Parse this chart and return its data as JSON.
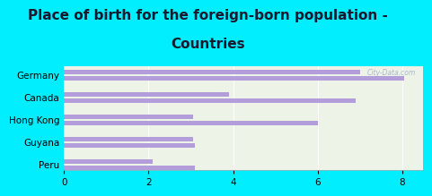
{
  "title_line1": "Place of birth for the foreign-born population -",
  "title_line2": "Countries",
  "categories": [
    "Germany",
    "Canada",
    "Hong Kong",
    "Guyana",
    "Peru"
  ],
  "values1": [
    8.05,
    6.9,
    6.0,
    3.1,
    3.1
  ],
  "values2": [
    7.0,
    3.9,
    3.05,
    3.05,
    2.1
  ],
  "bar_color": "#b39ddb",
  "bg_outer": "#00eeff",
  "bg_inner_tl": "#eef3e8",
  "bg_inner_br": "#d8ead0",
  "xlim": [
    0,
    8.5
  ],
  "xticks": [
    0,
    2,
    4,
    6,
    8
  ],
  "watermark": "City-Data.com",
  "title_fontsize": 11,
  "tick_fontsize": 7.5,
  "title_color": "#1a1a2e"
}
